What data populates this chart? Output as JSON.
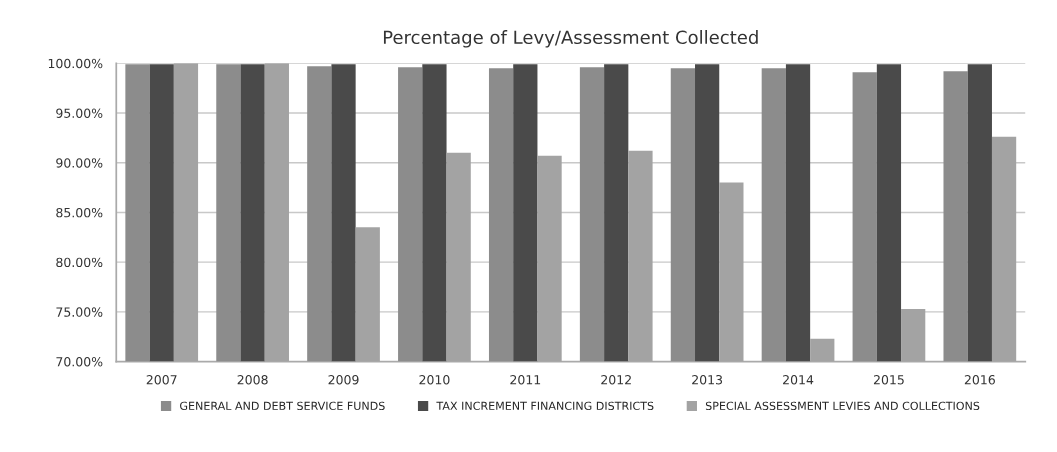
{
  "chart_data": {
    "type": "bar",
    "title": "Percentage of Levy/Assessment Collected",
    "categories": [
      "2007",
      "2008",
      "2009",
      "2010",
      "2011",
      "2012",
      "2013",
      "2014",
      "2015",
      "2016"
    ],
    "series": [
      {
        "name": "GENERAL AND DEBT SERVICE FUNDS",
        "color": "#8c8c8c",
        "values": [
          99.9,
          99.9,
          99.7,
          99.6,
          99.5,
          99.6,
          99.5,
          99.5,
          99.1,
          99.2
        ]
      },
      {
        "name": "TAX INCREMENT FINANCING DISTRICTS",
        "color": "#4a4a4a",
        "values": [
          99.9,
          99.9,
          99.9,
          99.9,
          99.9,
          99.9,
          99.9,
          99.9,
          99.9,
          99.9
        ]
      },
      {
        "name": "SPECIAL ASSESSMENT LEVIES AND COLLECTIONS",
        "color": "#a3a3a3",
        "values": [
          100,
          100,
          83.5,
          91,
          90.7,
          91.2,
          88,
          72.3,
          75.3,
          92.6
        ]
      }
    ],
    "ylim": [
      70,
      100
    ],
    "yticks": [
      {
        "value": 70,
        "label": "70.00%"
      },
      {
        "value": 75,
        "label": "75.00%"
      },
      {
        "value": 80,
        "label": "80.00%"
      },
      {
        "value": 85,
        "label": "85.00%"
      },
      {
        "value": 90,
        "label": "90.00%"
      },
      {
        "value": 95,
        "label": "95.00%"
      },
      {
        "value": 100,
        "label": "100.00%"
      }
    ],
    "grid": "y",
    "legend": "bottom"
  }
}
